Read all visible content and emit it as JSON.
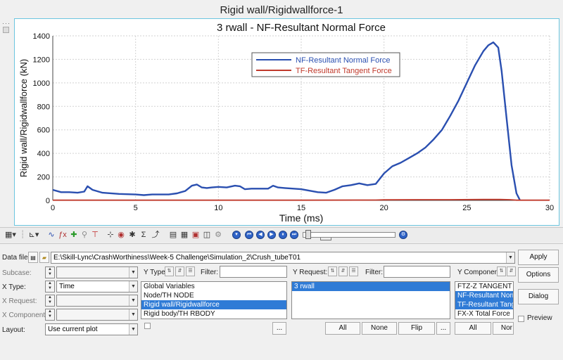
{
  "window_title": "Rigid wall/Rigidwallforce-1",
  "chart_data": {
    "type": "line",
    "title": "3 rwall - NF-Resultant Normal Force",
    "xlabel": "Time (ms)",
    "ylabel": "Rigid wall/Rigidwallforce (kN)",
    "xlim": [
      0,
      30
    ],
    "ylim": [
      0,
      1400
    ],
    "xticks": [
      "0",
      "5",
      "10",
      "15",
      "20",
      "25",
      "30"
    ],
    "yticks": [
      "0",
      "200",
      "400",
      "600",
      "800",
      "1000",
      "1200",
      "1400"
    ],
    "grid": true,
    "legend_position": "top-center",
    "series": [
      {
        "name": "NF-Resultant Normal Force",
        "color": "#2a4fb0",
        "x": [
          0,
          0.5,
          1,
          1.5,
          1.9,
          2.1,
          2.4,
          3,
          4,
          5,
          5.5,
          6,
          7,
          7.5,
          8,
          8.4,
          8.7,
          9,
          9.3,
          9.6,
          10,
          10.5,
          11,
          11.3,
          11.6,
          12,
          12.5,
          13,
          13.3,
          13.6,
          14,
          15,
          16,
          16.5,
          17,
          17.5,
          18,
          18.5,
          19,
          19.5,
          20,
          20.5,
          21,
          21.5,
          22,
          22.5,
          23,
          23.5,
          24,
          24.5,
          25,
          25.5,
          26,
          26.3,
          26.6,
          26.9,
          27.1,
          27.4,
          27.7,
          28,
          28.2
        ],
        "values": [
          90,
          70,
          70,
          65,
          75,
          120,
          90,
          65,
          55,
          50,
          45,
          50,
          50,
          60,
          80,
          125,
          135,
          110,
          105,
          110,
          115,
          110,
          125,
          120,
          95,
          100,
          100,
          100,
          125,
          110,
          105,
          95,
          70,
          65,
          90,
          120,
          130,
          145,
          130,
          140,
          230,
          290,
          320,
          360,
          400,
          450,
          520,
          600,
          720,
          850,
          1000,
          1150,
          1270,
          1320,
          1345,
          1300,
          1100,
          700,
          300,
          60,
          5
        ]
      },
      {
        "name": "TF-Resultant Tangent Force",
        "color": "#c0392b",
        "x": [
          0,
          5,
          10,
          15,
          19.5,
          20,
          22,
          24,
          26,
          27,
          27.6,
          28,
          30
        ],
        "values": [
          2,
          2,
          2,
          2,
          3,
          5,
          6,
          6,
          8,
          8,
          6,
          2,
          2
        ]
      }
    ]
  },
  "panel": {
    "data_file_label": "Data file:",
    "data_file_path": "E:\\Skill-Lync\\CrashWorthiness\\Week-5 Challenge\\Simulation_2\\Crush_tubeT01",
    "subcase_label": "Subcase:",
    "xtype_label": "X Type:",
    "xtype_value": "Time",
    "xrequest_label": "X Request:",
    "xcomponent_label": "X Component:",
    "layout_label": "Layout:",
    "layout_value": "Use current plot",
    "ytype_label": "Y Type:",
    "filter_label": "Filter:",
    "yrequest_label": "Y Request:",
    "ycomponent_label": "Y Component:",
    "ytype_items": [
      {
        "label": "Global Variables",
        "selected": false
      },
      {
        "label": "Node/TH NODE",
        "selected": false
      },
      {
        "label": "Rigid wall/Rigidwallforce",
        "selected": true
      },
      {
        "label": "Rigid body/TH RBODY",
        "selected": false
      }
    ],
    "yrequest_items": [
      {
        "label": "3 rwall",
        "selected": true
      }
    ],
    "ycomponent_items": [
      {
        "label": "FTZ-Z TANGENT",
        "selected": false
      },
      {
        "label": "NF-Resultant Norm",
        "selected": true
      },
      {
        "label": "TF-Resultant Tange",
        "selected": true
      },
      {
        "label": "FX-X Total Force",
        "selected": false
      }
    ],
    "all_label": "All",
    "none_label": "None",
    "flip_label": "Flip",
    "more_label": "...",
    "none_cut_label": "Nor",
    "apply_label": "Apply",
    "options_label": "Options",
    "dialog_label": "Dialog",
    "preview_label": "Preview"
  }
}
